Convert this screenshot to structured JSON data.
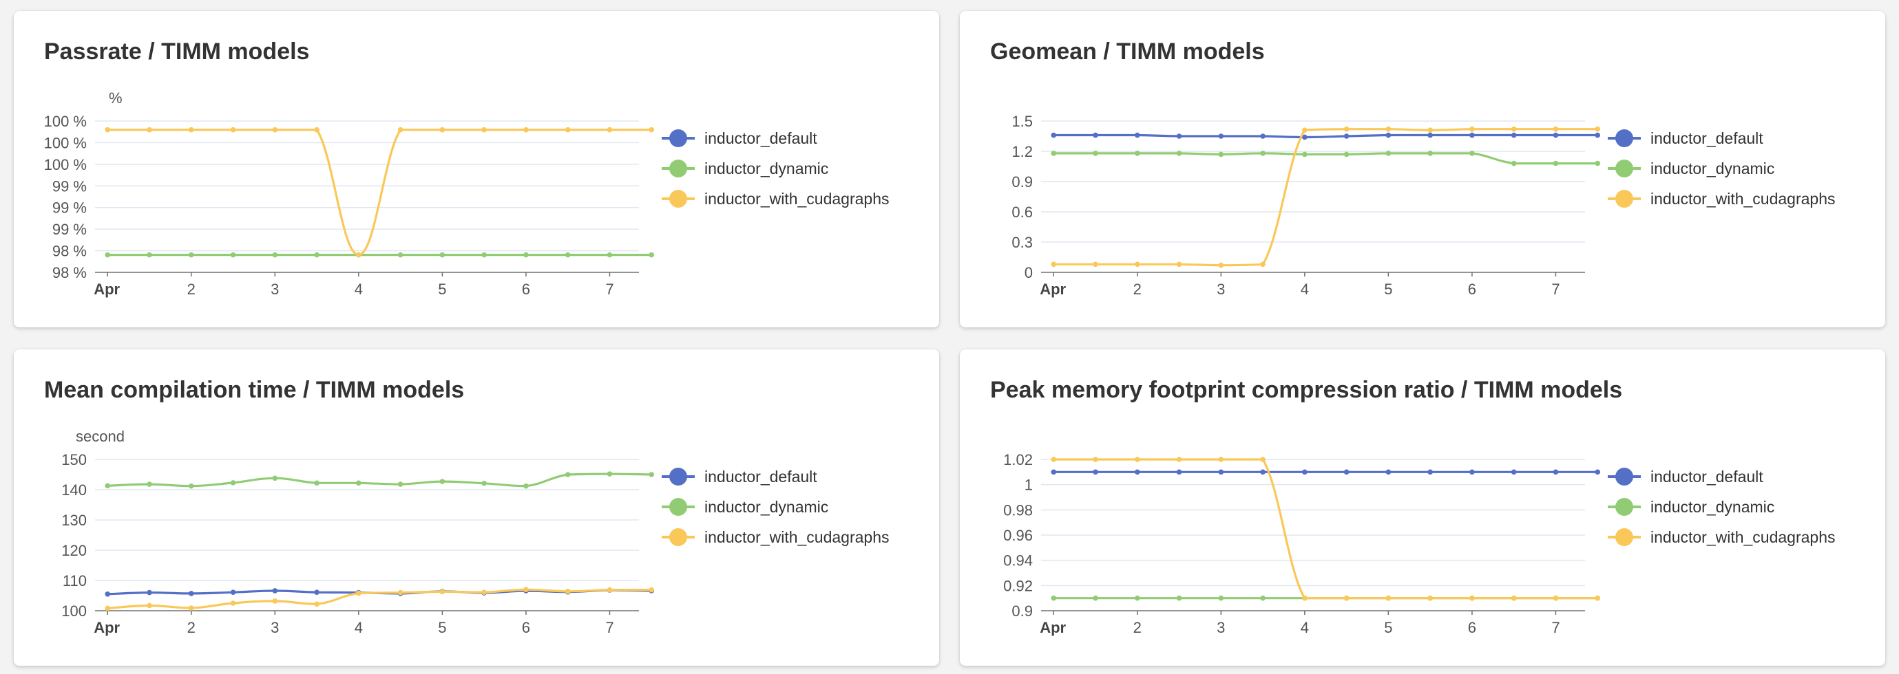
{
  "colors": {
    "inductor_default": "#5470c6",
    "inductor_dynamic": "#91cc75",
    "inductor_with_cudagraphs": "#fac858"
  },
  "charts": [
    {
      "id": "passrate",
      "title": "Passrate / TIMM models",
      "unit": "%",
      "y_ticks": [
        "98 %",
        "98 %",
        "99 %",
        "99 %",
        "99 %",
        "100 %",
        "100 %",
        "100 %"
      ],
      "x_ticks": [
        "Apr",
        "2",
        "3",
        "4",
        "5",
        "6",
        "7"
      ],
      "legend": [
        "inductor_default",
        "inductor_dynamic",
        "inductor_with_cudagraphs"
      ]
    },
    {
      "id": "geomean",
      "title": "Geomean / TIMM models",
      "unit": "",
      "y_ticks": [
        "0",
        "0.3",
        "0.6",
        "0.9",
        "1.2",
        "1.5"
      ],
      "x_ticks": [
        "Apr",
        "2",
        "3",
        "4",
        "5",
        "6",
        "7"
      ],
      "legend": [
        "inductor_default",
        "inductor_dynamic",
        "inductor_with_cudagraphs"
      ]
    },
    {
      "id": "compilation",
      "title": "Mean compilation time / TIMM models",
      "unit": "second",
      "y_ticks": [
        "100",
        "110",
        "120",
        "130",
        "140",
        "150"
      ],
      "x_ticks": [
        "Apr",
        "2",
        "3",
        "4",
        "5",
        "6",
        "7"
      ],
      "legend": [
        "inductor_default",
        "inductor_dynamic",
        "inductor_with_cudagraphs"
      ]
    },
    {
      "id": "memory",
      "title": "Peak memory footprint compression ratio / TIMM models",
      "unit": "",
      "y_ticks": [
        "0.9",
        "0.92",
        "0.94",
        "0.96",
        "0.98",
        "1",
        "1.02"
      ],
      "x_ticks": [
        "Apr",
        "2",
        "3",
        "4",
        "5",
        "6",
        "7"
      ],
      "legend": [
        "inductor_default",
        "inductor_dynamic",
        "inductor_with_cudagraphs"
      ]
    }
  ],
  "chart_data": [
    {
      "type": "line",
      "title": "Passrate / TIMM models",
      "ylabel": "%",
      "ylim": [
        97.8,
        100.4
      ],
      "x": [
        1,
        1.5,
        2,
        2.5,
        3,
        3.5,
        4,
        4.5,
        5,
        5.5,
        6,
        6.5,
        7,
        7.5
      ],
      "series": [
        {
          "name": "inductor_dynamic",
          "values": [
            98.1,
            98.1,
            98.1,
            98.1,
            98.1,
            98.1,
            98.1,
            98.1,
            98.1,
            98.1,
            98.1,
            98.1,
            98.1,
            98.1
          ]
        },
        {
          "name": "inductor_with_cudagraphs",
          "values": [
            100.25,
            100.25,
            100.25,
            100.25,
            100.25,
            100.25,
            98.1,
            100.25,
            100.25,
            100.25,
            100.25,
            100.25,
            100.25,
            100.25
          ]
        }
      ]
    },
    {
      "type": "line",
      "title": "Geomean / TIMM models",
      "ylim": [
        0,
        1.5
      ],
      "x": [
        1,
        1.5,
        2,
        2.5,
        3,
        3.5,
        4,
        4.5,
        5,
        5.5,
        6,
        6.5,
        7,
        7.5
      ],
      "series": [
        {
          "name": "inductor_default",
          "values": [
            1.36,
            1.36,
            1.36,
            1.35,
            1.35,
            1.35,
            1.34,
            1.35,
            1.36,
            1.36,
            1.36,
            1.36,
            1.36,
            1.36
          ]
        },
        {
          "name": "inductor_dynamic",
          "values": [
            1.18,
            1.18,
            1.18,
            1.18,
            1.17,
            1.18,
            1.17,
            1.17,
            1.18,
            1.18,
            1.18,
            1.08,
            1.08,
            1.08
          ]
        },
        {
          "name": "inductor_with_cudagraphs",
          "values": [
            0.08,
            0.08,
            0.08,
            0.08,
            0.07,
            0.08,
            1.41,
            1.42,
            1.42,
            1.41,
            1.42,
            1.42,
            1.42,
            1.42
          ]
        }
      ]
    },
    {
      "type": "line",
      "title": "Mean compilation time / TIMM models",
      "ylabel": "second",
      "ylim": [
        100,
        150
      ],
      "x": [
        1,
        1.5,
        2,
        2.5,
        3,
        3.5,
        4,
        4.5,
        5,
        5.5,
        6,
        6.5,
        7,
        7.5
      ],
      "series": [
        {
          "name": "inductor_default",
          "values": [
            105.5,
            106,
            105.7,
            106.1,
            106.6,
            106.1,
            106,
            105.7,
            106.4,
            105.9,
            106.6,
            106.2,
            106.8,
            106.6
          ]
        },
        {
          "name": "inductor_dynamic",
          "values": [
            141.3,
            141.8,
            141.2,
            142.3,
            143.8,
            142.2,
            142.2,
            141.8,
            142.7,
            142.1,
            141.2,
            145,
            145.2,
            145
          ]
        },
        {
          "name": "inductor_with_cudagraphs",
          "values": [
            100.8,
            101.7,
            100.9,
            102.5,
            103.2,
            102.2,
            105.8,
            106,
            106.3,
            106.1,
            107,
            106.4,
            106.9,
            106.9
          ]
        }
      ]
    },
    {
      "type": "line",
      "title": "Peak memory footprint compression ratio / TIMM models",
      "ylim": [
        0.9,
        1.02
      ],
      "x": [
        1,
        1.5,
        2,
        2.5,
        3,
        3.5,
        4,
        4.5,
        5,
        5.5,
        6,
        6.5,
        7,
        7.5
      ],
      "series": [
        {
          "name": "inductor_default",
          "values": [
            1.01,
            1.01,
            1.01,
            1.01,
            1.01,
            1.01,
            1.01,
            1.01,
            1.01,
            1.01,
            1.01,
            1.01,
            1.01,
            1.01
          ]
        },
        {
          "name": "inductor_dynamic",
          "values": [
            0.91,
            0.91,
            0.91,
            0.91,
            0.91,
            0.91,
            0.91,
            0.91,
            0.91,
            0.91,
            0.91,
            0.91,
            0.91,
            0.91
          ]
        },
        {
          "name": "inductor_with_cudagraphs",
          "values": [
            1.02,
            1.02,
            1.02,
            1.02,
            1.02,
            1.02,
            0.91,
            0.91,
            0.91,
            0.91,
            0.91,
            0.91,
            0.91,
            0.91
          ]
        }
      ]
    }
  ]
}
